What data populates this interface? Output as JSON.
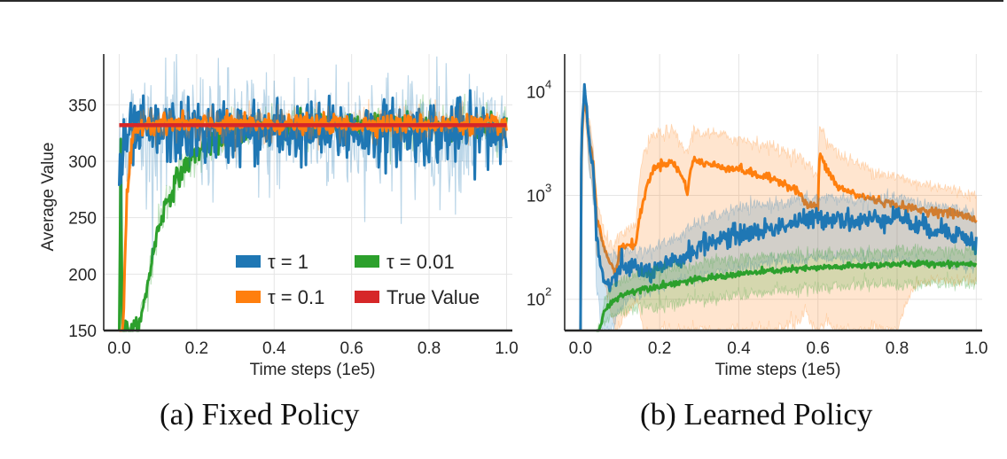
{
  "captions": {
    "a": "(a) Fixed Policy",
    "b": "(b) Learned Policy"
  },
  "colors": {
    "tau_1": "#1f77b4",
    "tau_0_1": "#ff7f0e",
    "tau_0_01": "#2ca02c",
    "true_value": "#d62728",
    "grid": "#e5e5e5",
    "axis": "#262626"
  },
  "chart_data": [
    {
      "id": "fixed",
      "type": "line",
      "title": "(a) Fixed Policy",
      "xlabel": "Time steps (1e5)",
      "ylabel": "Average Value",
      "xlim": [
        -0.04,
        1.015
      ],
      "ylim": [
        150,
        395
      ],
      "yscale": "linear",
      "xticks": [
        0.0,
        0.2,
        0.4,
        0.6,
        0.8,
        1.0
      ],
      "xtick_labels": [
        "0.0",
        "0.2",
        "0.4",
        "0.6",
        "0.8",
        "1.0"
      ],
      "yticks": [
        150,
        200,
        250,
        300,
        350
      ],
      "ytick_labels": [
        "150",
        "200",
        "250",
        "300",
        "350"
      ],
      "grid": true,
      "legend": {
        "placement": "lower-right",
        "columns": 2,
        "entries": [
          {
            "label": "τ = 1",
            "series": "tau_1"
          },
          {
            "label": "τ = 0.01",
            "series": "tau_0_01"
          },
          {
            "label": "τ = 0.1",
            "series": "tau_0_1"
          },
          {
            "label": "True Value",
            "series": "true_value"
          }
        ]
      },
      "series": [
        {
          "name": "tau_0_01",
          "label": "τ = 0.01",
          "x": [
            0.0,
            0.004,
            0.008,
            0.05,
            0.06,
            0.08,
            0.1,
            0.12,
            0.15,
            0.18,
            0.2,
            0.25,
            0.3,
            0.35,
            0.4,
            0.5,
            0.6,
            0.7,
            0.8,
            0.9,
            1.0
          ],
          "y": [
            150,
            322,
            150,
            150,
            165,
            205,
            240,
            262,
            285,
            300,
            308,
            318,
            325,
            328,
            330,
            331,
            332,
            332,
            332,
            332,
            332
          ],
          "noise": 5
        },
        {
          "name": "tau_1",
          "label": "τ = 1",
          "x": [
            0.0,
            0.01,
            0.02,
            0.05,
            0.1,
            0.2,
            0.4,
            0.6,
            0.8,
            1.0
          ],
          "y": [
            290,
            300,
            322,
            325,
            325,
            326,
            326,
            326,
            326,
            326
          ],
          "noise": 14
        },
        {
          "name": "tau_0_1",
          "label": "τ = 0.1",
          "x": [
            0.0,
            0.01,
            0.02,
            0.035,
            0.06,
            0.1,
            0.2,
            0.4,
            0.6,
            0.8,
            1.0
          ],
          "y": [
            150,
            150,
            270,
            320,
            333,
            334,
            333,
            333,
            333,
            333,
            333
          ],
          "noise": 4
        },
        {
          "name": "true_value",
          "label": "True Value",
          "x": [
            0.0,
            1.0
          ],
          "y": [
            332,
            332
          ],
          "noise": 0
        }
      ]
    },
    {
      "id": "learned",
      "type": "line",
      "title": "(b) Learned Policy",
      "xlabel": "Time steps (1e5)",
      "ylabel": "",
      "xlim": [
        -0.04,
        1.015
      ],
      "ylim": [
        50,
        23000
      ],
      "yscale": "log",
      "xticks": [
        0.0,
        0.2,
        0.4,
        0.6,
        0.8,
        1.0
      ],
      "xtick_labels": [
        "0.0",
        "0.2",
        "0.4",
        "0.6",
        "0.8",
        "1.0"
      ],
      "yticks": [
        100,
        1000,
        10000
      ],
      "ytick_labels": [
        "10",
        "10",
        "10"
      ],
      "ytick_exponents": [
        "2",
        "3",
        "4"
      ],
      "grid": true,
      "series": [
        {
          "name": "tau_0_1",
          "label": "τ = 0.1",
          "x": [
            0.0,
            0.01,
            0.02,
            0.04,
            0.06,
            0.08,
            0.09,
            0.1,
            0.12,
            0.14,
            0.16,
            0.18,
            0.2,
            0.23,
            0.25,
            0.27,
            0.285,
            0.3,
            0.35,
            0.4,
            0.45,
            0.5,
            0.55,
            0.57,
            0.59,
            0.6,
            0.605,
            0.62,
            0.65,
            0.7,
            0.75,
            0.8,
            0.85,
            0.9,
            0.95,
            1.0
          ],
          "y": [
            40,
            9000,
            4000,
            600,
            300,
            200,
            180,
            320,
            330,
            340,
            900,
            1700,
            2000,
            2100,
            1700,
            1100,
            2200,
            2100,
            1900,
            1800,
            1550,
            1400,
            1100,
            800,
            800,
            780,
            2500,
            1800,
            1200,
            1000,
            900,
            800,
            730,
            700,
            670,
            580
          ],
          "band_lo": [
            40,
            6000,
            2000,
            300,
            150,
            60,
            50,
            60,
            80,
            100,
            50,
            40,
            50,
            50,
            50,
            50,
            50,
            50,
            50,
            50,
            50,
            50,
            60,
            80,
            50,
            50,
            50,
            60,
            50,
            50,
            50,
            50,
            140,
            150,
            150,
            150
          ],
          "band_hi": [
            40,
            11000,
            6000,
            900,
            400,
            350,
            350,
            400,
            450,
            500,
            2500,
            3600,
            4000,
            4200,
            3300,
            2500,
            4200,
            4100,
            3800,
            3500,
            3200,
            2800,
            2400,
            2000,
            1700,
            1600,
            5000,
            3500,
            2500,
            2000,
            1700,
            1500,
            1300,
            1250,
            1100,
            1000
          ],
          "noise": 0.02
        },
        {
          "name": "tau_1",
          "label": "τ = 1",
          "x": [
            0.0,
            0.01,
            0.02,
            0.04,
            0.05,
            0.06,
            0.08,
            0.1,
            0.12,
            0.15,
            0.18,
            0.2,
            0.25,
            0.3,
            0.35,
            0.4,
            0.45,
            0.5,
            0.55,
            0.6,
            0.65,
            0.7,
            0.75,
            0.8,
            0.85,
            0.9,
            0.95,
            1.0
          ],
          "y": [
            40,
            11000,
            3500,
            400,
            200,
            150,
            130,
            200,
            210,
            190,
            180,
            190,
            240,
            320,
            380,
            420,
            450,
            500,
            560,
            600,
            620,
            550,
            600,
            650,
            500,
            480,
            430,
            340
          ],
          "band_lo": [
            40,
            8000,
            2000,
            150,
            60,
            50,
            50,
            80,
            100,
            110,
            120,
            130,
            150,
            160,
            180,
            200,
            220,
            230,
            240,
            250,
            250,
            240,
            240,
            250,
            230,
            220,
            210,
            200
          ],
          "band_hi": [
            40,
            12500,
            5000,
            700,
            400,
            300,
            260,
            280,
            300,
            290,
            300,
            330,
            400,
            550,
            650,
            750,
            800,
            850,
            900,
            950,
            950,
            900,
            900,
            950,
            850,
            800,
            750,
            650
          ],
          "noise": 0.05
        },
        {
          "name": "tau_0_01",
          "label": "τ = 0.01",
          "x": [
            0.04,
            0.05,
            0.06,
            0.08,
            0.1,
            0.12,
            0.15,
            0.2,
            0.25,
            0.3,
            0.35,
            0.4,
            0.45,
            0.5,
            0.6,
            0.7,
            0.8,
            0.9,
            1.0
          ],
          "y": [
            40,
            55,
            75,
            95,
            108,
            115,
            125,
            135,
            145,
            155,
            165,
            175,
            182,
            190,
            200,
            210,
            218,
            220,
            220
          ],
          "band_lo": [
            40,
            50,
            60,
            70,
            75,
            78,
            82,
            86,
            92,
            98,
            104,
            110,
            115,
            120,
            128,
            135,
            140,
            142,
            142
          ],
          "band_hi": [
            40,
            60,
            95,
            130,
            150,
            160,
            175,
            190,
            205,
            220,
            235,
            245,
            255,
            265,
            275,
            285,
            290,
            290,
            290
          ],
          "noise": 0.015
        }
      ]
    }
  ]
}
